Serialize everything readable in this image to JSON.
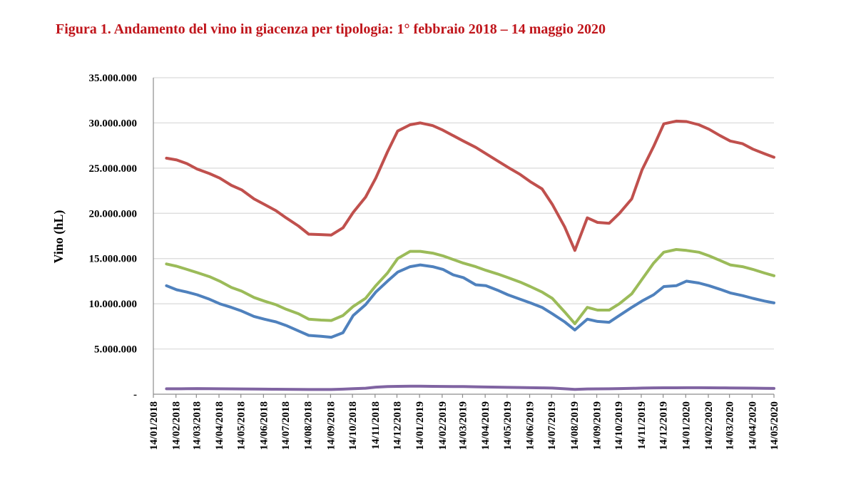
{
  "chart_data": {
    "type": "line",
    "title": "Figura 1. Andamento del vino in giacenza per tipologia: 1° febbraio 2018 – 14 maggio 2020",
    "ylabel": "Vino (hL)",
    "xlabel": "",
    "ylim": [
      0,
      35000000
    ],
    "yticks": [
      0,
      5000000,
      10000000,
      15000000,
      20000000,
      25000000,
      30000000,
      35000000
    ],
    "ytick_labels": [
      "-",
      "5.000.000",
      "10.000.000",
      "15.000.000",
      "20.000.000",
      "25.000.000",
      "30.000.000",
      "35.000.000"
    ],
    "grid": true,
    "legend": "none",
    "categories": [
      "14/01/2018",
      "14/02/2018",
      "14/03/2018",
      "14/04/2018",
      "14/05/2018",
      "14/06/2018",
      "14/07/2018",
      "14/08/2018",
      "14/09/2018",
      "14/10/2018",
      "14/11/2018",
      "14/12/2018",
      "14/01/2019",
      "14/02/2019",
      "14/03/2019",
      "14/04/2019",
      "14/05/2019",
      "14/06/2019",
      "14/07/2019",
      "14/08/2019",
      "14/09/2019",
      "14/10/2019",
      "14/11/2019",
      "14/12/2019",
      "14/01/2020",
      "14/02/2020",
      "14/03/2020",
      "14/04/2020",
      "14/05/2020"
    ],
    "x": [
      "2018-02-01",
      "2018-02-15",
      "2018-03-01",
      "2018-03-15",
      "2018-04-01",
      "2018-04-15",
      "2018-05-01",
      "2018-05-15",
      "2018-06-01",
      "2018-06-15",
      "2018-07-01",
      "2018-07-15",
      "2018-08-01",
      "2018-08-15",
      "2018-09-01",
      "2018-09-15",
      "2018-10-01",
      "2018-10-15",
      "2018-11-01",
      "2018-11-15",
      "2018-12-01",
      "2018-12-15",
      "2019-01-01",
      "2019-01-15",
      "2019-02-01",
      "2019-02-15",
      "2019-03-01",
      "2019-03-15",
      "2019-04-01",
      "2019-04-15",
      "2019-05-01",
      "2019-05-15",
      "2019-06-01",
      "2019-06-15",
      "2019-07-01",
      "2019-07-15",
      "2019-08-01",
      "2019-08-15",
      "2019-09-01",
      "2019-09-15",
      "2019-10-01",
      "2019-10-15",
      "2019-11-01",
      "2019-11-15",
      "2019-12-01",
      "2019-12-15",
      "2020-01-01",
      "2020-01-15",
      "2020-02-01",
      "2020-02-15",
      "2020-03-01",
      "2020-03-15",
      "2020-04-01",
      "2020-04-15",
      "2020-05-01",
      "2020-05-14"
    ],
    "series": [
      {
        "color": "#c0504d",
        "values": [
          26100000,
          25900000,
          25500000,
          24900000,
          24400000,
          23900000,
          23100000,
          22600000,
          21600000,
          21000000,
          20300000,
          19500000,
          18600000,
          17700000,
          17650000,
          17600000,
          18400000,
          20100000,
          21800000,
          23900000,
          26800000,
          29100000,
          29800000,
          30000000,
          29700000,
          29200000,
          28600000,
          28000000,
          27300000,
          26600000,
          25800000,
          25100000,
          24300000,
          23500000,
          22700000,
          21000000,
          18500000,
          15900000,
          19500000,
          19000000,
          18900000,
          20000000,
          21600000,
          24800000,
          27400000,
          29900000,
          30200000,
          30150000,
          29800000,
          29300000,
          28600000,
          28000000,
          27700000,
          27100000,
          26600000,
          26200000
        ]
      },
      {
        "color": "#9bbb59",
        "values": [
          14400000,
          14150000,
          13800000,
          13450000,
          13000000,
          12500000,
          11800000,
          11400000,
          10700000,
          10300000,
          9900000,
          9400000,
          8900000,
          8300000,
          8200000,
          8150000,
          8700000,
          9700000,
          10600000,
          12000000,
          13400000,
          15000000,
          15800000,
          15800000,
          15600000,
          15300000,
          14900000,
          14500000,
          14100000,
          13700000,
          13300000,
          12900000,
          12400000,
          11900000,
          11300000,
          10600000,
          9100000,
          7800000,
          9600000,
          9300000,
          9300000,
          10000000,
          11100000,
          12700000,
          14500000,
          15700000,
          16000000,
          15900000,
          15700000,
          15300000,
          14800000,
          14300000,
          14100000,
          13800000,
          13400000,
          13100000
        ]
      },
      {
        "color": "#4f81bd",
        "values": [
          12000000,
          11550000,
          11300000,
          11000000,
          10500000,
          10000000,
          9600000,
          9200000,
          8600000,
          8300000,
          8000000,
          7600000,
          7000000,
          6500000,
          6400000,
          6300000,
          6800000,
          8700000,
          9900000,
          11300000,
          12500000,
          13500000,
          14100000,
          14300000,
          14100000,
          13800000,
          13200000,
          12900000,
          12100000,
          12000000,
          11500000,
          11000000,
          10500000,
          10100000,
          9600000,
          8900000,
          8000000,
          7100000,
          8300000,
          8050000,
          7950000,
          8700000,
          9600000,
          10300000,
          11000000,
          11900000,
          12000000,
          12500000,
          12300000,
          12000000,
          11600000,
          11200000,
          10900000,
          10600000,
          10300000,
          10100000
        ]
      },
      {
        "color": "#8064a2",
        "values": [
          600000,
          600000,
          610000,
          620000,
          610000,
          600000,
          590000,
          580000,
          570000,
          560000,
          550000,
          540000,
          530000,
          520000,
          520000,
          520000,
          560000,
          610000,
          660000,
          780000,
          850000,
          870000,
          880000,
          880000,
          870000,
          860000,
          850000,
          840000,
          820000,
          800000,
          780000,
          760000,
          740000,
          720000,
          700000,
          680000,
          600000,
          530000,
          580000,
          590000,
          600000,
          620000,
          650000,
          680000,
          700000,
          710000,
          710000,
          720000,
          720000,
          710000,
          700000,
          690000,
          680000,
          670000,
          650000,
          640000
        ]
      }
    ]
  }
}
